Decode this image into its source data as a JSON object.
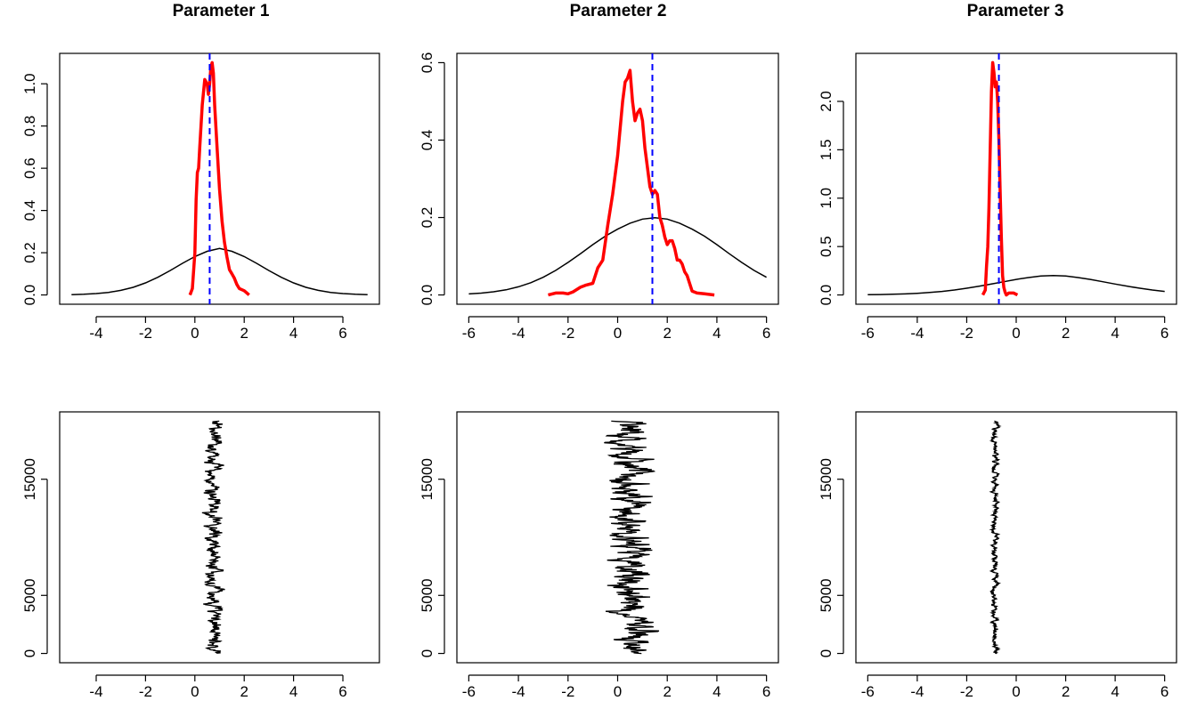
{
  "chart_data": [
    {
      "type": "line",
      "title": "Parameter 1",
      "xlabel": "",
      "ylabel": "",
      "xlim": [
        -5,
        7
      ],
      "ylim": [
        0,
        1.1
      ],
      "xticks": [
        "-4",
        "-2",
        "0",
        "2",
        "4",
        "6"
      ],
      "yticks": [
        "0.0",
        "0.2",
        "0.4",
        "0.6",
        "0.8",
        "1.0"
      ],
      "reference_line": 0.6,
      "colors": {
        "posterior": "#ff0000",
        "prior": "#000000",
        "reference": "#0000ff"
      },
      "series": [
        {
          "x": [
            -0.2,
            -0.1,
            0.0,
            0.05,
            0.1,
            0.15,
            0.2,
            0.3,
            0.4,
            0.5,
            0.55,
            0.6,
            0.65,
            0.7,
            0.75,
            0.8,
            0.9,
            1.0,
            1.1,
            1.2,
            1.3,
            1.4,
            1.5,
            1.6,
            1.7,
            1.8,
            2.0,
            2.2
          ],
          "y": [
            0.0,
            0.03,
            0.2,
            0.45,
            0.58,
            0.6,
            0.7,
            0.9,
            1.02,
            1.0,
            0.95,
            1.0,
            1.08,
            1.1,
            1.05,
            0.9,
            0.7,
            0.5,
            0.35,
            0.25,
            0.18,
            0.12,
            0.1,
            0.08,
            0.05,
            0.03,
            0.02,
            0.0
          ]
        },
        {
          "x": [
            -5,
            -4.5,
            -4,
            -3.5,
            -3,
            -2.5,
            -2,
            -1.5,
            -1,
            -0.5,
            0,
            0.5,
            1,
            1.5,
            2,
            2.5,
            3,
            3.5,
            4,
            4.5,
            5,
            5.5,
            6,
            6.5,
            7
          ],
          "y": [
            0.0016,
            0.0033,
            0.0065,
            0.0121,
            0.0216,
            0.0362,
            0.0569,
            0.0838,
            0.1158,
            0.1499,
            0.1818,
            0.2066,
            0.2201,
            0.2066,
            0.1818,
            0.1499,
            0.1158,
            0.0838,
            0.0569,
            0.0362,
            0.0216,
            0.0121,
            0.0065,
            0.0033,
            0.0016
          ]
        }
      ]
    },
    {
      "type": "line",
      "title": "Parameter 2",
      "xlabel": "",
      "ylabel": "",
      "xlim": [
        -6,
        6
      ],
      "ylim": [
        0,
        0.6
      ],
      "xticks": [
        "-6",
        "-4",
        "-2",
        "0",
        "2",
        "4",
        "6"
      ],
      "yticks": [
        "0.0",
        "0.2",
        "0.4",
        "0.6"
      ],
      "reference_line": 1.4,
      "colors": {
        "posterior": "#ff0000",
        "prior": "#000000",
        "reference": "#0000ff"
      },
      "series": [
        {
          "x": [
            -2.8,
            -2.5,
            -2.2,
            -2.0,
            -1.8,
            -1.5,
            -1.3,
            -1.0,
            -0.8,
            -0.6,
            -0.4,
            -0.2,
            0.0,
            0.2,
            0.3,
            0.4,
            0.5,
            0.6,
            0.7,
            0.8,
            0.9,
            1.0,
            1.1,
            1.2,
            1.3,
            1.4,
            1.5,
            1.6,
            1.7,
            1.8,
            1.9,
            2.0,
            2.1,
            2.2,
            2.3,
            2.4,
            2.5,
            2.6,
            2.7,
            2.8,
            2.9,
            3.0,
            3.2,
            3.5,
            3.9
          ],
          "y": [
            0.0,
            0.005,
            0.005,
            0.003,
            0.008,
            0.02,
            0.025,
            0.03,
            0.07,
            0.09,
            0.18,
            0.26,
            0.36,
            0.5,
            0.55,
            0.56,
            0.58,
            0.5,
            0.45,
            0.47,
            0.48,
            0.45,
            0.38,
            0.33,
            0.28,
            0.26,
            0.27,
            0.26,
            0.2,
            0.18,
            0.15,
            0.13,
            0.14,
            0.14,
            0.12,
            0.09,
            0.09,
            0.08,
            0.06,
            0.05,
            0.03,
            0.01,
            0.005,
            0.003,
            0.0
          ]
        },
        {
          "x": [
            -6,
            -5.5,
            -5,
            -4.5,
            -4,
            -3.5,
            -3,
            -2.5,
            -2,
            -1.5,
            -1,
            -0.5,
            0,
            0.5,
            1,
            1.5,
            2,
            2.5,
            3,
            3.5,
            4,
            4.5,
            5,
            5.5,
            6
          ],
          "y": [
            0.0027,
            0.0047,
            0.0081,
            0.0133,
            0.021,
            0.0317,
            0.0457,
            0.0633,
            0.0839,
            0.1066,
            0.1299,
            0.1518,
            0.17,
            0.1854,
            0.1958,
            0.1995,
            0.1958,
            0.1854,
            0.17,
            0.1518,
            0.1299,
            0.1066,
            0.0839,
            0.0633,
            0.0457
          ]
        }
      ]
    },
    {
      "type": "line",
      "title": "Parameter 3",
      "xlabel": "",
      "ylabel": "",
      "xlim": [
        -6,
        6
      ],
      "ylim": [
        0,
        2.4
      ],
      "xticks": [
        "-6",
        "-4",
        "-2",
        "0",
        "2",
        "4",
        "6"
      ],
      "yticks": [
        "0.0",
        "0.5",
        "1.0",
        "1.5",
        "2.0"
      ],
      "reference_line": -0.7,
      "colors": {
        "posterior": "#ff0000",
        "prior": "#000000",
        "reference": "#0000ff"
      },
      "series": [
        {
          "x": [
            -1.35,
            -1.25,
            -1.2,
            -1.15,
            -1.1,
            -1.05,
            -1.0,
            -0.95,
            -0.9,
            -0.85,
            -0.8,
            -0.75,
            -0.7,
            -0.65,
            -0.6,
            -0.55,
            -0.5,
            -0.45,
            -0.4,
            -0.3,
            -0.1,
            0.05
          ],
          "y": [
            0.0,
            0.05,
            0.3,
            0.5,
            0.9,
            1.5,
            2.1,
            2.4,
            2.3,
            2.15,
            2.2,
            2.0,
            1.6,
            1.1,
            0.6,
            0.2,
            0.08,
            0.03,
            0.0,
            0.02,
            0.02,
            0.0
          ]
        },
        {
          "x": [
            -6,
            -5.5,
            -5,
            -4.5,
            -4,
            -3.5,
            -3,
            -2.5,
            -2,
            -1.5,
            -1,
            -0.5,
            0,
            0.5,
            1,
            1.5,
            2,
            2.5,
            3,
            3.5,
            4,
            4.5,
            5,
            5.5,
            6
          ],
          "y": [
            0.0024,
            0.004,
            0.0067,
            0.0107,
            0.0167,
            0.0251,
            0.0364,
            0.051,
            0.069,
            0.09,
            0.113,
            0.137,
            0.16,
            0.18,
            0.195,
            0.2,
            0.195,
            0.18,
            0.16,
            0.137,
            0.113,
            0.09,
            0.069,
            0.051,
            0.0364
          ]
        }
      ]
    },
    {
      "type": "line",
      "title": "",
      "xlabel": "",
      "ylabel": "",
      "xlim": [
        -5,
        7
      ],
      "ylim": [
        0,
        20000
      ],
      "xticks": [
        "-4",
        "-2",
        "0",
        "2",
        "4",
        "6"
      ],
      "yticks": [
        "0",
        "5000",
        "15000"
      ],
      "trace": {
        "iterations": 20000,
        "center": 0.75,
        "spread": 0.35,
        "min": -0.1,
        "max": 2.2
      }
    },
    {
      "type": "line",
      "title": "",
      "xlabel": "",
      "ylabel": "",
      "xlim": [
        -6,
        6
      ],
      "ylim": [
        0,
        20000
      ],
      "xticks": [
        "-6",
        "-4",
        "-2",
        "0",
        "2",
        "4",
        "6"
      ],
      "yticks": [
        "0",
        "5000",
        "15000"
      ],
      "trace": {
        "iterations": 20000,
        "center": 0.6,
        "spread": 0.9,
        "min": -2.8,
        "max": 3.9
      }
    },
    {
      "type": "line",
      "title": "",
      "xlabel": "",
      "ylabel": "",
      "xlim": [
        -6,
        6
      ],
      "ylim": [
        0,
        20000
      ],
      "xticks": [
        "-6",
        "-4",
        "-2",
        "0",
        "2",
        "4",
        "6"
      ],
      "yticks": [
        "0",
        "5000",
        "15000"
      ],
      "trace": {
        "iterations": 20000,
        "center": -0.85,
        "spread": 0.15,
        "min": -1.35,
        "max": -0.3
      }
    }
  ]
}
